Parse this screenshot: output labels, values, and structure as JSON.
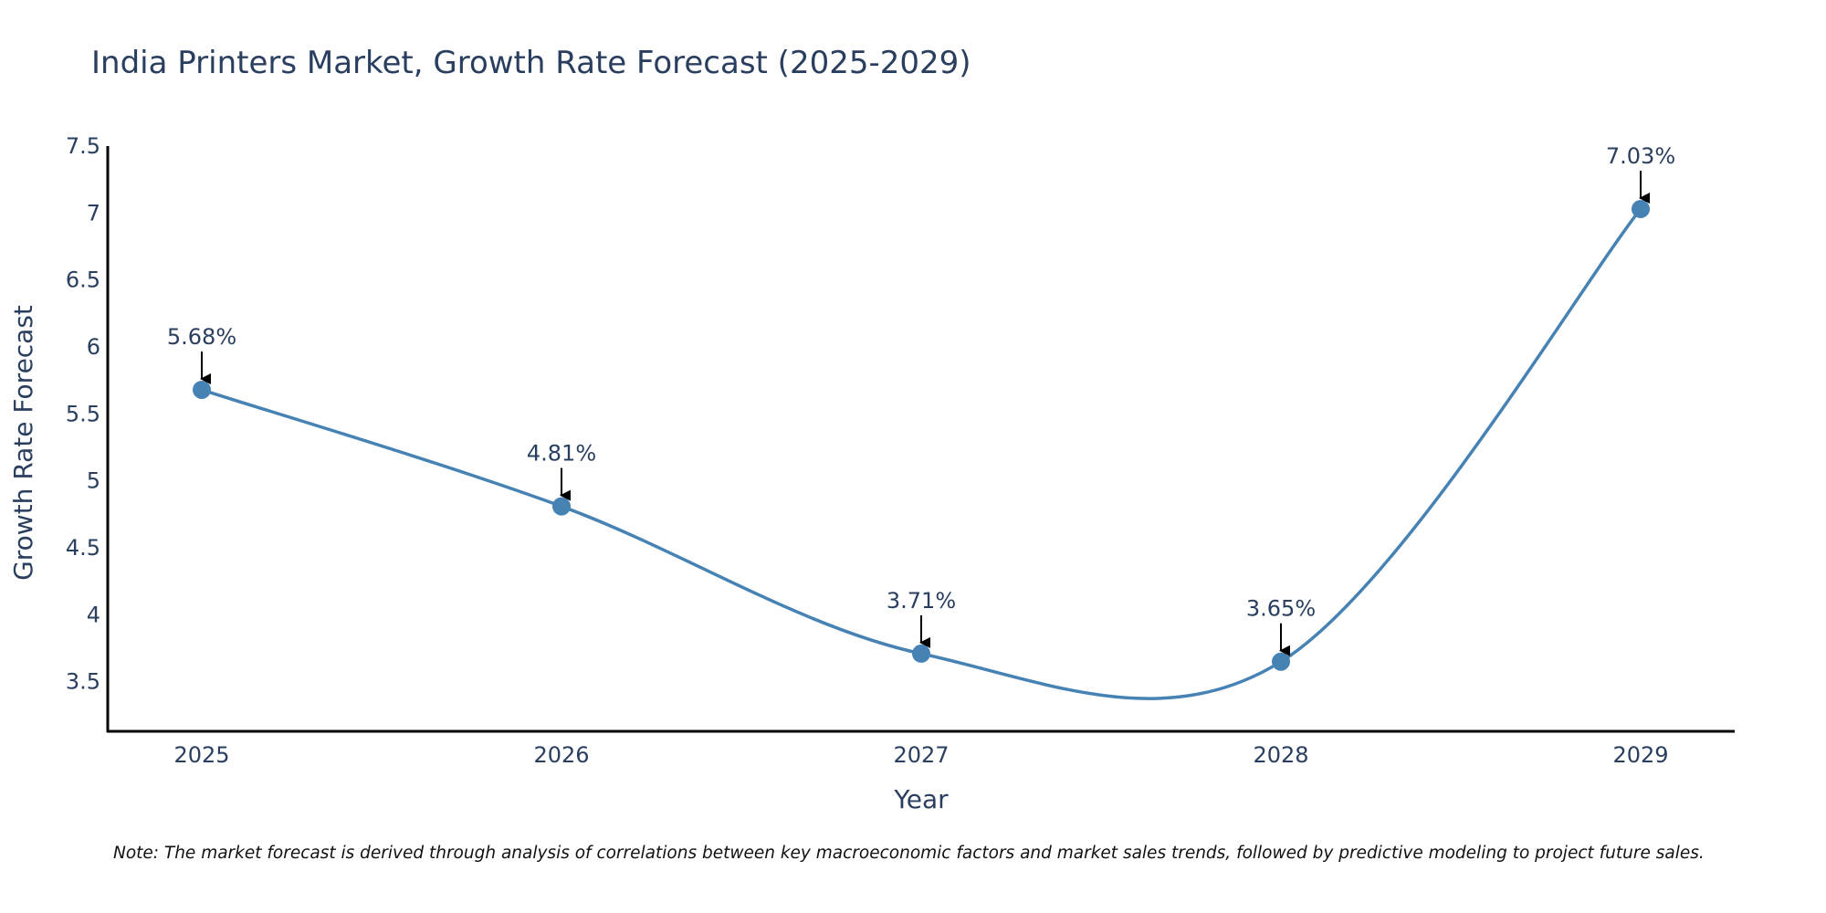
{
  "chart_data": {
    "type": "line",
    "title": "India Printers Market, Growth Rate Forecast (2025-2029)",
    "xlabel": "Year",
    "ylabel": "Growth Rate Forecast",
    "categories": [
      "2025",
      "2026",
      "2027",
      "2028",
      "2029"
    ],
    "values": [
      5.68,
      4.81,
      3.71,
      3.65,
      7.03
    ],
    "data_labels": [
      "5.68%",
      "4.81%",
      "3.71%",
      "3.65%",
      "7.03%"
    ],
    "yticks": [
      3.5,
      4,
      4.5,
      5,
      5.5,
      6,
      6.5,
      7,
      7.5
    ],
    "ytick_labels": [
      "3.5",
      "4",
      "4.5",
      "5",
      "5.5",
      "6",
      "6.5",
      "7",
      "7.5"
    ],
    "ylim": [
      3.13,
      7.5
    ],
    "grid": false,
    "line_shape": "spline",
    "line_color": "#4682b4",
    "marker_color": "#4682b4",
    "arrow_color": "#000000"
  },
  "note": "Note: The market forecast is derived through analysis of correlations between key macroeconomic factors and market sales trends, followed by predictive modeling to project future sales."
}
